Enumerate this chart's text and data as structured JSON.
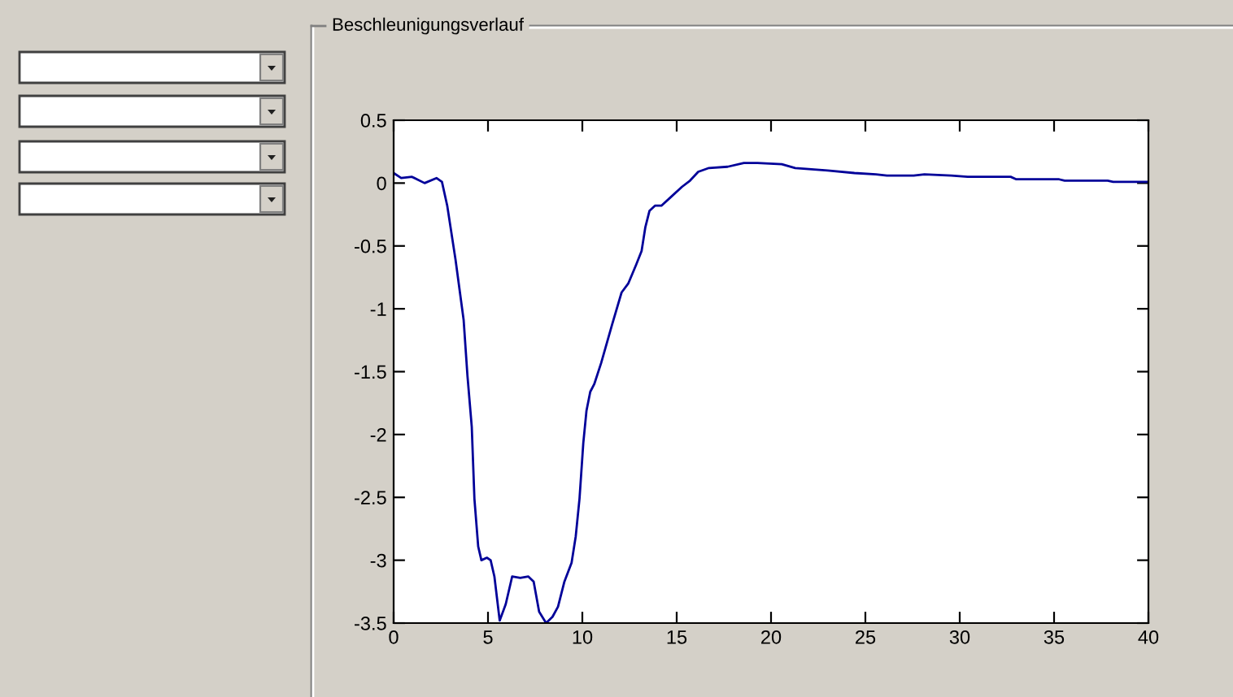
{
  "chart_data": {
    "type": "line",
    "title": "Beschleunigungsverlauf",
    "x": [
      0,
      0.4,
      0.97,
      1.64,
      2.27,
      2.56,
      2.84,
      3.28,
      3.71,
      3.91,
      4.14,
      4.28,
      4.48,
      4.65,
      4.94,
      5.14,
      5.34,
      5.62,
      5.94,
      6.28,
      6.71,
      7.14,
      7.42,
      7.71,
      8.08,
      8.42,
      8.71,
      9.05,
      9.43,
      9.65,
      9.85,
      10.05,
      10.22,
      10.42,
      10.63,
      11.0,
      11.57,
      12.08,
      12.43,
      12.85,
      13.14,
      13.34,
      13.56,
      13.85,
      14.19,
      14.7,
      15.28,
      15.71,
      16.14,
      16.71,
      17.7,
      18.56,
      19.28,
      20.57,
      21.28,
      23.0,
      24.42,
      25.56,
      26.14,
      27.56,
      28.13,
      29.56,
      30.42,
      32.7,
      33.0,
      35.27,
      35.56,
      37.84,
      38.13,
      40
    ],
    "values": [
      0.08,
      0.04,
      0.05,
      0.0,
      0.04,
      0.01,
      -0.18,
      -0.61,
      -1.09,
      -1.53,
      -1.94,
      -2.51,
      -2.89,
      -3.0,
      -2.98,
      -3.0,
      -3.13,
      -3.48,
      -3.35,
      -3.13,
      -3.14,
      -3.13,
      -3.17,
      -3.41,
      -3.5,
      -3.45,
      -3.37,
      -3.17,
      -3.02,
      -2.81,
      -2.51,
      -2.07,
      -1.81,
      -1.66,
      -1.6,
      -1.43,
      -1.13,
      -0.87,
      -0.8,
      -0.65,
      -0.54,
      -0.35,
      -0.22,
      -0.18,
      -0.18,
      -0.11,
      -0.03,
      0.02,
      0.09,
      0.12,
      0.13,
      0.16,
      0.16,
      0.15,
      0.12,
      0.1,
      0.08,
      0.07,
      0.06,
      0.06,
      0.07,
      0.06,
      0.05,
      0.05,
      0.03,
      0.03,
      0.02,
      0.02,
      0.01,
      0.01
    ],
    "color": "#000099",
    "xlim": [
      0,
      40
    ],
    "ylim": [
      -3.5,
      0.5
    ],
    "xticks": [
      0,
      5,
      10,
      15,
      20,
      25,
      30,
      35,
      40
    ],
    "yticks": [
      -3.5,
      -3,
      -2.5,
      -2,
      -1.5,
      -1,
      -0.5,
      0,
      0.5
    ]
  }
}
